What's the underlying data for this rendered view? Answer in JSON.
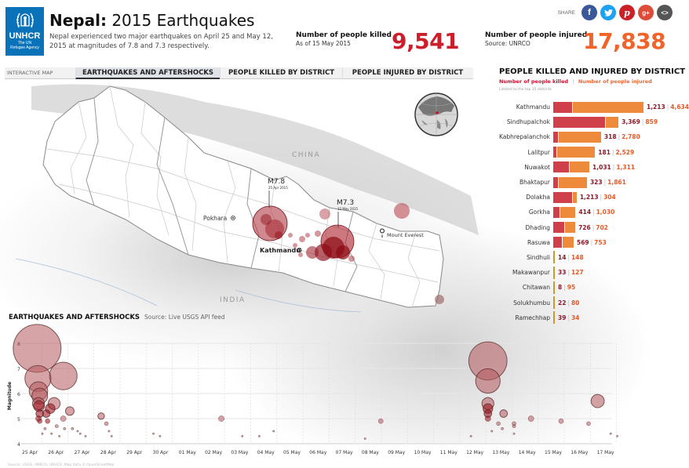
{
  "header": {
    "logo": {
      "brand": "UNHCR",
      "sub1": "The UN",
      "sub2": "Refugee Agency",
      "color": "#0a72b9"
    },
    "title_bold": "Nepal:",
    "title_rest": " 2015 Earthquakes",
    "description": "Nepal experienced two major earthquakes on April 25 and May 12, 2015 at magnitudes of 7.8 and 7.3 respectively."
  },
  "share": {
    "label": "SHARE",
    "buttons": [
      {
        "name": "facebook",
        "glyph": "f",
        "color": "#3b5998"
      },
      {
        "name": "twitter",
        "glyph": "t",
        "color": "#1da1f2"
      },
      {
        "name": "pinterest",
        "glyph": "p",
        "color": "#cb2027"
      },
      {
        "name": "google-plus",
        "glyph": "g+",
        "color": "#dd4b39"
      },
      {
        "name": "embed",
        "glyph": "<>",
        "color": "#555555"
      }
    ]
  },
  "stats": {
    "killed": {
      "label": "Number of people killed",
      "sub": "As of 15 May 2015",
      "value": "9,541",
      "color": "#cc1f2b"
    },
    "injured": {
      "label": "Number of people injured",
      "sub": "Source: UNRCO",
      "value": "17,838",
      "color": "#f0642a"
    }
  },
  "tabs": {
    "label": "INTERACTIVE MAP",
    "items": [
      {
        "label": "EARTHQUAKES AND AFTERSHOCKS",
        "active": true
      },
      {
        "label": "PEOPLE KILLED BY DISTRICT",
        "active": false
      },
      {
        "label": "PEOPLE INJURED BY DISTRICT",
        "active": false
      }
    ]
  },
  "map": {
    "labels": {
      "china": "CHINA",
      "india": "INDIA",
      "pokhara": "Pokhara",
      "kathmandu": "Kathmandu",
      "everest": "Mount Everest",
      "m78": "M7.8",
      "m78_date": "25 Apr 2015",
      "m73": "M7.3",
      "m73_date": "12 May 2015"
    }
  },
  "district_panel": {
    "title": "PEOPLE KILLED AND INJURED BY DISTRICT",
    "legend_killed": "Number of people killed",
    "legend_sep": "|",
    "legend_injured": "Number of people injured",
    "note": "Limited to the top 15 districts"
  },
  "timeline": {
    "title": "EARTHQUAKES AND AFTERSHOCKS",
    "source": "Source: Live USGS API feed",
    "footer": "Source: USGS, UNRCO, UNHCR. Map data © OpenStreetMap"
  },
  "chart_data": [
    {
      "type": "bar",
      "title": "PEOPLE KILLED AND INJURED BY DISTRICT",
      "subtitle": "Limited to the top 15 districts",
      "orientation": "horizontal",
      "stacked": true,
      "categories": [
        "Kathmandu",
        "Sindhupalchok",
        "Kabhrepalanchok",
        "Lalitpur",
        "Nuwakot",
        "Bhaktapur",
        "Dolakha",
        "Gorkha",
        "Dhading",
        "Rasuwa",
        "Sindhuli",
        "Makawanpur",
        "Chitawan",
        "Solukhumbu",
        "Ramechhap"
      ],
      "series": [
        {
          "name": "Number of people killed",
          "color": "#d0404a",
          "values": [
            1213,
            3369,
            318,
            181,
            1031,
            323,
            1213,
            414,
            726,
            569,
            14,
            33,
            8,
            22,
            39
          ]
        },
        {
          "name": "Number of people injured",
          "color": "#ee8a3c",
          "values": [
            4634,
            859,
            2780,
            2529,
            1311,
            1861,
            304,
            1030,
            702,
            753,
            148,
            127,
            95,
            80,
            34
          ]
        }
      ],
      "labels": [
        [
          "1,213",
          "4,634"
        ],
        [
          "3,369",
          "859"
        ],
        [
          "318",
          "2,780"
        ],
        [
          "181",
          "2,529"
        ],
        [
          "1,031",
          "1,311"
        ],
        [
          "323",
          "1,861"
        ],
        [
          "1,213",
          "304"
        ],
        [
          "414",
          "1,030"
        ],
        [
          "726",
          "702"
        ],
        [
          "569",
          "753"
        ],
        [
          "14",
          "148"
        ],
        [
          "33",
          "127"
        ],
        [
          "8",
          "95"
        ],
        [
          "22",
          "80"
        ],
        [
          "39",
          "34"
        ]
      ],
      "legend_position": "top"
    },
    {
      "type": "scatter",
      "title": "EARTHQUAKES AND AFTERSHOCKS",
      "subtitle": "Source: Live USGS API feed",
      "xlabel": "",
      "ylabel": "Magnitude",
      "ylim": [
        4,
        8
      ],
      "yticks": [
        4,
        5,
        6,
        7,
        8
      ],
      "xticks": [
        "25 Apr",
        "26 Apr",
        "27 Apr",
        "28 Apr",
        "29 Apr",
        "30 Apr",
        "01 May",
        "02 May",
        "03 May",
        "04 May",
        "05 May",
        "06 May",
        "07 May",
        "08 May",
        "09 May",
        "10 May",
        "11 May",
        "12 May",
        "13 May",
        "14 May",
        "15 May",
        "16 May",
        "17 May"
      ],
      "grid": true,
      "bubble_size": "magnitude",
      "points": [
        {
          "day": 0.25,
          "mag": 7.8
        },
        {
          "day": 0.28,
          "mag": 6.6
        },
        {
          "day": 1.25,
          "mag": 6.7
        },
        {
          "day": 0.3,
          "mag": 6.1
        },
        {
          "day": 0.35,
          "mag": 5.9
        },
        {
          "day": 0.3,
          "mag": 5.6
        },
        {
          "day": 0.32,
          "mag": 5.5
        },
        {
          "day": 0.35,
          "mag": 5.2
        },
        {
          "day": 0.3,
          "mag": 5.0
        },
        {
          "day": 0.35,
          "mag": 4.9
        },
        {
          "day": 0.9,
          "mag": 5.6
        },
        {
          "day": 0.75,
          "mag": 5.4
        },
        {
          "day": 0.6,
          "mag": 5.2
        },
        {
          "day": 0.65,
          "mag": 4.9
        },
        {
          "day": 1.5,
          "mag": 5.3
        },
        {
          "day": 1.25,
          "mag": 5.0
        },
        {
          "day": 2.7,
          "mag": 5.1
        },
        {
          "day": 1.6,
          "mag": 4.6
        },
        {
          "day": 2.9,
          "mag": 4.8
        },
        {
          "day": 1.0,
          "mag": 4.7
        },
        {
          "day": 1.3,
          "mag": 4.6
        },
        {
          "day": 1.8,
          "mag": 4.5
        },
        {
          "day": 0.55,
          "mag": 4.6
        },
        {
          "day": 3.0,
          "mag": 4.5
        },
        {
          "day": 0.45,
          "mag": 4.4
        },
        {
          "day": 0.8,
          "mag": 4.4
        },
        {
          "day": 1.1,
          "mag": 4.3
        },
        {
          "day": 1.9,
          "mag": 4.4
        },
        {
          "day": 2.1,
          "mag": 4.3
        },
        {
          "day": 3.1,
          "mag": 4.3
        },
        {
          "day": 4.7,
          "mag": 4.4
        },
        {
          "day": 4.95,
          "mag": 4.3
        },
        {
          "day": 7.3,
          "mag": 5.0
        },
        {
          "day": 8.1,
          "mag": 4.3
        },
        {
          "day": 8.75,
          "mag": 4.3
        },
        {
          "day": 9.3,
          "mag": 4.5
        },
        {
          "day": 13.4,
          "mag": 4.9
        },
        {
          "day": 12.8,
          "mag": 4.2
        },
        {
          "day": 17.5,
          "mag": 7.3
        },
        {
          "day": 17.5,
          "mag": 6.5
        },
        {
          "day": 17.5,
          "mag": 5.6
        },
        {
          "day": 17.5,
          "mag": 5.4
        },
        {
          "day": 17.5,
          "mag": 5.2
        },
        {
          "day": 17.5,
          "mag": 5.0
        },
        {
          "day": 18.1,
          "mag": 5.2
        },
        {
          "day": 17.9,
          "mag": 4.8
        },
        {
          "day": 18.05,
          "mag": 4.6
        },
        {
          "day": 18.5,
          "mag": 4.8
        },
        {
          "day": 18.5,
          "mag": 4.7
        },
        {
          "day": 19.15,
          "mag": 5.0
        },
        {
          "day": 20.3,
          "mag": 4.9
        },
        {
          "day": 21.35,
          "mag": 4.8
        },
        {
          "day": 21.7,
          "mag": 5.7
        },
        {
          "day": 17.65,
          "mag": 4.5
        },
        {
          "day": 18.5,
          "mag": 4.4
        },
        {
          "day": 16.85,
          "mag": 4.3
        },
        {
          "day": 22.2,
          "mag": 4.4
        },
        {
          "day": 22.45,
          "mag": 4.3
        }
      ]
    }
  ]
}
